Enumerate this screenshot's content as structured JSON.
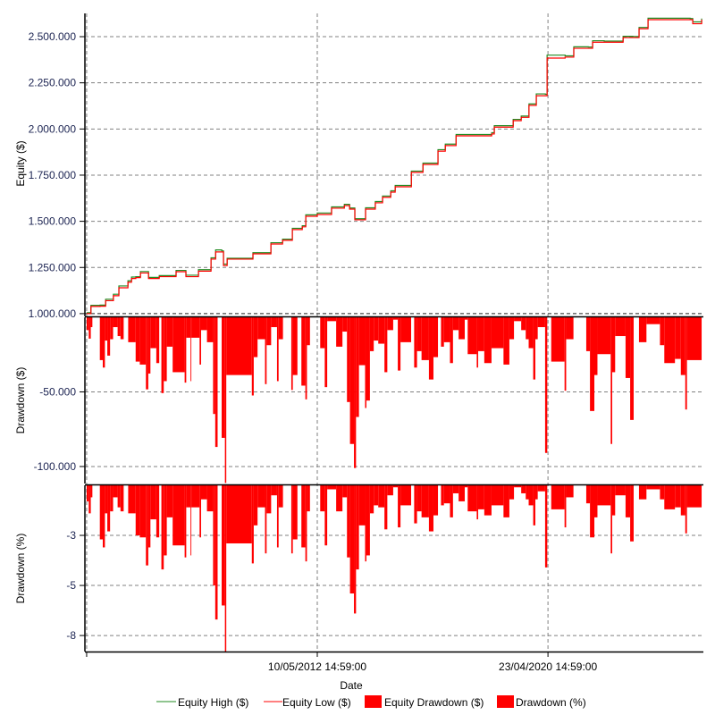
{
  "chart_data": {
    "type": "line",
    "xlabel": "Date",
    "x_axis": {
      "type": "date",
      "xlim": [
        "2004-05-06",
        "2025-09-01"
      ],
      "ticks": [
        {
          "date": "2004-05-28",
          "label": ""
        },
        {
          "date": "2012-05-10",
          "label": "10/05/2012 14:59:00"
        },
        {
          "date": "2020-04-23",
          "label": "23/04/2020 14:59:00"
        }
      ],
      "grid": true
    },
    "legend": {
      "placement": "bottom",
      "entries": [
        {
          "label": "Equity High ($)",
          "kind": "line",
          "color": "#228b22"
        },
        {
          "label": "Equity Low ($)",
          "kind": "line",
          "color": "#ff0000"
        },
        {
          "label": "Equity Drawdown ($)",
          "kind": "box",
          "color": "#ff0000"
        },
        {
          "label": "Drawdown (%)",
          "kind": "box",
          "color": "#ff0000"
        }
      ]
    },
    "panels": [
      {
        "id": "equity",
        "type": "step-line",
        "ylabel": "Equity ($)",
        "ylim": [
          985000,
          2626000
        ],
        "yticks": [
          {
            "value": 1000000,
            "label": "1.000.000"
          },
          {
            "value": 1250000,
            "label": "1.250.000"
          },
          {
            "value": 1500000,
            "label": "1.500.000"
          },
          {
            "value": 1750000,
            "label": "1.750.000"
          },
          {
            "value": 2000000,
            "label": "2.000.000"
          },
          {
            "value": 2250000,
            "label": "2.250.000"
          },
          {
            "value": 2500000,
            "label": "2.500.000"
          }
        ],
        "grid": true,
        "dates": [
          "2004-05-28",
          "2004-07-21",
          "2004-11-13",
          "2005-01-22",
          "2005-04-30",
          "2005-07-08",
          "2005-10-30",
          "2005-12-14",
          "2006-02-06",
          "2006-04-05",
          "2006-07-16",
          "2006-11-28",
          "2007-06-28",
          "2007-10-30",
          "2008-04-05",
          "2008-09-10",
          "2008-11-07",
          "2009-01-23",
          "2009-02-14",
          "2009-04-01",
          "2010-02-10",
          "2010-02-20",
          "2010-10-04",
          "2011-02-28",
          "2011-07-01",
          "2011-11-03",
          "2011-12-17",
          "2012-05-10",
          "2012-11-06",
          "2013-04-16",
          "2013-06-21",
          "2013-08-26",
          "2014-01-08",
          "2014-05-11",
          "2014-08-10",
          "2014-11-21",
          "2015-01-16",
          "2015-08-08",
          "2016-01-01",
          "2016-07-08",
          "2016-10-08",
          "2017-02-21",
          "2018-05-15",
          "2018-06-17",
          "2019-02-10",
          "2019-05-22",
          "2019-08-28",
          "2019-11-28",
          "2020-03-21",
          "2020-04-12",
          "2020-11-25",
          "2021-03-14",
          "2021-09-13",
          "2021-11-06",
          "2022-04-01",
          "2022-11-25",
          "2023-03-28",
          "2023-06-14",
          "2023-10-05",
          "2025-03-18",
          "2025-04-20",
          "2025-08-10"
        ],
        "series": [
          {
            "name": "Equity High ($)",
            "color": "#228b22",
            "values": [
              1005000,
              1045000,
              1046000,
              1078000,
              1105000,
              1150000,
              1178000,
              1198000,
              1200000,
              1228000,
              1196000,
              1206000,
              1234000,
              1208000,
              1238000,
              1302000,
              1345000,
              1340000,
              1268000,
              1300000,
              1300000,
              1330000,
              1384000,
              1403000,
              1462000,
              1476000,
              1535000,
              1545000,
              1578000,
              1592000,
              1572000,
              1514000,
              1573000,
              1607000,
              1637000,
              1665000,
              1694000,
              1772000,
              1815000,
              1888000,
              1918000,
              1970000,
              1980000,
              2018000,
              2052000,
              2070000,
              2136000,
              2190000,
              2188000,
              2400000,
              2396000,
              2445000,
              2444000,
              2478000,
              2476000,
              2502000,
              2501000,
              2550000,
              2600000,
              2598000,
              2580000,
              2598000
            ]
          },
          {
            "name": "Equity Low ($)",
            "color": "#ff0000",
            "values": [
              1000000,
              1039000,
              1040000,
              1070000,
              1097000,
              1140000,
              1170000,
              1190000,
              1195000,
              1220000,
              1190000,
              1200000,
              1227000,
              1200000,
              1230000,
              1295000,
              1334000,
              1334000,
              1260000,
              1295000,
              1295000,
              1324000,
              1377000,
              1397000,
              1455000,
              1470000,
              1527000,
              1537000,
              1571000,
              1585000,
              1566000,
              1508000,
              1566000,
              1600000,
              1630000,
              1658000,
              1687000,
              1765000,
              1808000,
              1880000,
              1910000,
              1963000,
              1973000,
              2010000,
              2045000,
              2063000,
              2128000,
              2180000,
              2180000,
              2384000,
              2389000,
              2437000,
              2437000,
              2470000,
              2470000,
              2495000,
              2495000,
              2543000,
              2592000,
              2592000,
              2570000,
              2592000
            ]
          }
        ]
      },
      {
        "id": "drawdown-usd",
        "type": "step-area",
        "ylabel": "Drawdown ($)",
        "ylim": [
          -111400,
          0
        ],
        "yticks": [
          {
            "value": -50000,
            "label": "-50.000"
          },
          {
            "value": -100000,
            "label": "-100.000"
          }
        ],
        "grid": true,
        "series_name": "Equity Drawdown ($)",
        "color": "#ff0000"
      },
      {
        "id": "drawdown-pct",
        "type": "step-area",
        "ylabel": "Drawdown (%)",
        "ylim": [
          -8.3,
          0
        ],
        "yticks": [
          {
            "value": -2.5,
            "label": "-3"
          },
          {
            "value": -5,
            "label": "-5"
          },
          {
            "value": -7.5,
            "label": "-8"
          }
        ],
        "grid": true,
        "series_name": "Drawdown (%)",
        "color": "#ff0000"
      }
    ],
    "drawdown": {
      "end_date": "2025-08-10",
      "dates": [
        "2004-05-28",
        "2004-06-23",
        "2004-07-19",
        "2004-08-08",
        "2004-11-10",
        "2004-12-17",
        "2005-01-13",
        "2005-02-12",
        "2005-03-19",
        "2005-04-26",
        "2005-06-22",
        "2005-07-28",
        "2005-09-06",
        "2005-11-02",
        "2006-02-04",
        "2006-03-28",
        "2006-06-13",
        "2006-07-13",
        "2006-08-09",
        "2006-10-22",
        "2006-11-28",
        "2006-12-25",
        "2007-01-24",
        "2007-03-03",
        "2007-05-16",
        "2007-10-14",
        "2007-11-03",
        "2007-12-27",
        "2008-01-06",
        "2008-04-19",
        "2008-05-08",
        "2008-07-21",
        "2008-10-06",
        "2008-11-02",
        "2008-12-02",
        "2009-01-22",
        "2009-03-04",
        "2009-03-21",
        "2010-02-06",
        "2010-03-02",
        "2010-04-19",
        "2010-07-22",
        "2010-08-11",
        "2010-10-07",
        "2010-12-20",
        "2011-01-09",
        "2011-03-05",
        "2011-06-18",
        "2011-07-07",
        "2011-09-03",
        "2011-10-23",
        "2011-12-12",
        "2012-01-01",
        "2012-02-08",
        "2012-06-16",
        "2012-08-12",
        "2012-09-12",
        "2013-01-03",
        "2013-03-23",
        "2013-05-19",
        "2013-06-26",
        "2013-08-15",
        "2013-09-10",
        "2013-10-17",
        "2014-01-02",
        "2014-01-19",
        "2014-03-04",
        "2014-04-21",
        "2014-06-17",
        "2014-09-03",
        "2014-10-09",
        "2014-12-22",
        "2015-02-18",
        "2015-03-24",
        "2015-08-05",
        "2015-09-12",
        "2015-10-18",
        "2015-12-14",
        "2016-03-16",
        "2016-05-12",
        "2016-07-08",
        "2016-08-15",
        "2016-09-21",
        "2016-12-06",
        "2017-01-13",
        "2017-03-25",
        "2017-06-10",
        "2017-07-17",
        "2017-11-08",
        "2017-11-26",
        "2018-02-11",
        "2018-05-13",
        "2018-10-11",
        "2018-12-24",
        "2019-02-20",
        "2019-05-22",
        "2019-07-18",
        "2019-08-24",
        "2019-10-20",
        "2019-11-16",
        "2019-12-16",
        "2020-03-18",
        "2020-04-14",
        "2020-06-03",
        "2020-11-18",
        "2020-12-08",
        "2021-03-10",
        "2021-08-18",
        "2021-10-04",
        "2021-11-28",
        "2022-01-06",
        "2022-06-22",
        "2022-07-11",
        "2022-08-17",
        "2022-12-26",
        "2023-02-22",
        "2023-04-07",
        "2023-06-13",
        "2023-09-15",
        "2024-03-03",
        "2024-04-27",
        "2024-09-08",
        "2024-11-21",
        "2025-01-16",
        "2025-02-06"
      ],
      "usd": [
        -8600,
        -14300,
        -6600,
        0,
        -28700,
        -33700,
        -15600,
        -25700,
        -14700,
        -6600,
        -12600,
        -14700,
        0,
        -16700,
        -29700,
        -31700,
        -48300,
        -37700,
        -20700,
        -30700,
        0,
        -50800,
        -42800,
        -19700,
        -36800,
        -43800,
        -13700,
        -42800,
        -13700,
        -31700,
        -8600,
        -16700,
        -64800,
        -86900,
        0,
        -80800,
        -111000,
        -38700,
        -52400,
        -26700,
        -14700,
        -44800,
        -18700,
        -6600,
        -42800,
        -14700,
        0,
        -48700,
        -38700,
        0,
        -45800,
        -55000,
        -18700,
        0,
        -20700,
        -46800,
        -2600,
        -19700,
        -9600,
        -56800,
        -84900,
        -101000,
        -66800,
        -32100,
        -60800,
        -55800,
        -22700,
        -15600,
        -17700,
        -36800,
        -8600,
        -1600,
        -35700,
        -16700,
        0,
        -33700,
        -22700,
        -28700,
        -41700,
        -26700,
        0,
        -19700,
        -16700,
        -30700,
        -8600,
        -14700,
        -1600,
        -24700,
        -33700,
        -22700,
        -30700,
        -20700,
        -31700,
        -14700,
        -2600,
        -8600,
        -14700,
        -20700,
        -41700,
        -14700,
        -6600,
        -90900,
        0,
        -29700,
        -49200,
        -14700,
        0,
        -22700,
        -62800,
        -38700,
        -24700,
        -84900,
        -36800,
        -12600,
        -40700,
        -68800,
        0,
        -16700,
        -4600,
        -18700,
        -30700,
        -27900,
        -38700,
        -61800,
        -28700
      ],
      "pct": [
        -0.8,
        -1.4,
        -0.6,
        0,
        -2.7,
        -3.1,
        -1.4,
        -2.3,
        -1.3,
        -0.6,
        -1.1,
        -1.3,
        0,
        -1.4,
        -2.5,
        -2.6,
        -4.0,
        -3.1,
        -1.7,
        -2.6,
        0,
        -4.2,
        -3.5,
        -1.6,
        -3.0,
        -3.6,
        -1.1,
        -3.5,
        -1.1,
        -2.6,
        -0.7,
        -1.3,
        -5.0,
        -6.7,
        0,
        -6.0,
        -8.3,
        -2.9,
        -3.9,
        -2.0,
        -1.1,
        -3.4,
        -1.4,
        -0.5,
        -3.1,
        -1.1,
        0,
        -3.4,
        -2.7,
        0,
        -3.1,
        -3.8,
        -1.3,
        0,
        -1.3,
        -3.0,
        -0.2,
        -1.3,
        -0.6,
        -3.6,
        -5.4,
        -6.4,
        -4.2,
        -2.0,
        -3.8,
        -3.5,
        -1.4,
        -1.0,
        -1.1,
        -2.2,
        -0.5,
        -0.1,
        -2.1,
        -1.0,
        0,
        -1.9,
        -1.3,
        -1.6,
        -2.3,
        -1.5,
        0,
        -1.0,
        -0.9,
        -1.6,
        -0.4,
        -0.8,
        -0.1,
        -1.3,
        -1.7,
        -1.2,
        -1.5,
        -1.0,
        -1.6,
        -0.7,
        -0.1,
        -0.4,
        -0.7,
        -1.0,
        -2.0,
        -0.7,
        -0.3,
        -4.1,
        0,
        -1.2,
        -2.1,
        -0.6,
        0,
        -0.9,
        -2.6,
        -1.6,
        -1.0,
        -3.4,
        -1.5,
        -0.5,
        -1.6,
        -2.8,
        0,
        -0.7,
        -0.2,
        -0.7,
        -1.2,
        -1.1,
        -1.5,
        -2.4,
        -1.1
      ]
    }
  }
}
